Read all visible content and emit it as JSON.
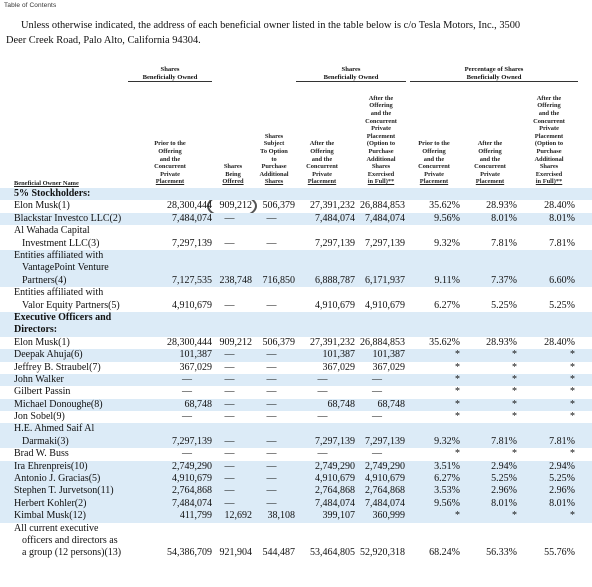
{
  "toc_label": "Table of Contents",
  "intro_text": {
    "line1": "Unless otherwise indicated, the address of each beneficial owner listed in the table below is c/o Tesla Motors, Inc., 3500",
    "line2": "Deer Creek Road, Palo Alto, California 94304."
  },
  "groups": {
    "shares_owned_1": [
      "Shares",
      "Beneficially Owned"
    ],
    "shares_owned_2": [
      "Shares",
      "Beneficially Owned"
    ],
    "percentage": [
      "Percentage of Shares",
      "Beneficially Owned"
    ]
  },
  "columns": [
    [
      "Prior to the",
      "Offering",
      "and the",
      "Concurrent",
      "Private",
      "Placement"
    ],
    [
      "Shares",
      "Being",
      "Offered"
    ],
    [
      "Shares",
      "Subject",
      "To Option",
      "to",
      "Purchase",
      "Additional",
      "Shares"
    ],
    [
      "After the",
      "Offering",
      "and the",
      "Concurrent",
      "Private",
      "Placement"
    ],
    [
      "After the",
      "Offering",
      "and the",
      "Concurrent",
      "Private",
      "Placement",
      "(Option to",
      "Purchase",
      "Additional",
      "Shares",
      "Exercised",
      "in Full)**"
    ],
    [
      "Prior to the",
      "Offering",
      "and the",
      "Concurrent",
      "Private",
      "Placement"
    ],
    [
      "After the",
      "Offering",
      "and the",
      "Concurrent",
      "Private",
      "Placement"
    ],
    [
      "After the",
      "Offering",
      "and the",
      "Concurrent",
      "Private",
      "Placement",
      "(Option to",
      "Purchase",
      "Additional",
      "Shares",
      "Exercised",
      "in Full)**"
    ]
  ],
  "owner_header": "Beneficial Owner Name",
  "rows": [
    {
      "name": [
        "5% Stockholders:"
      ],
      "section": true,
      "blue": true,
      "values": [
        "",
        "",
        "",
        "",
        "",
        "",
        "",
        ""
      ]
    },
    {
      "name": [
        "Elon Musk(1)"
      ],
      "values": [
        "28,300,444",
        "909,212",
        "506,379",
        "27,391,232",
        "26,884,853",
        "35.62%",
        "28.93%",
        "28.40%"
      ]
    },
    {
      "name": [
        "Blackstar Investco LLC(2)"
      ],
      "blue": true,
      "values": [
        "7,484,074",
        "—",
        "—",
        "7,484,074",
        "7,484,074",
        "9.56%",
        "8.01%",
        "8.01%"
      ]
    },
    {
      "name": [
        "Al Wahada Capital",
        "Investment LLC(3)"
      ],
      "values": [
        "7,297,139",
        "—",
        "—",
        "7,297,139",
        "7,297,139",
        "9.32%",
        "7.81%",
        "7.81%"
      ]
    },
    {
      "name": [
        "Entities affiliated with",
        "VantagePoint Venture",
        "Partners(4)"
      ],
      "blue": true,
      "values": [
        "7,127,535",
        "238,748",
        "716,850",
        "6,888,787",
        "6,171,937",
        "9.11%",
        "7.37%",
        "6.60%"
      ]
    },
    {
      "name": [
        "Entities affiliated with",
        "Valor Equity Partners(5)"
      ],
      "values": [
        "4,910,679",
        "—",
        "—",
        "4,910,679",
        "4,910,679",
        "6.27%",
        "5.25%",
        "5.25%"
      ]
    },
    {
      "name": [
        "Executive Officers and",
        "Directors:"
      ],
      "section": true,
      "blue": true,
      "values": [
        "",
        "",
        "",
        "",
        "",
        "",
        "",
        ""
      ]
    },
    {
      "name": [
        "Elon Musk(1)"
      ],
      "values": [
        "28,300,444",
        "909,212",
        "506,379",
        "27,391,232",
        "26,884,853",
        "35.62%",
        "28.93%",
        "28.40%"
      ]
    },
    {
      "name": [
        "Deepak Ahuja(6)"
      ],
      "blue": true,
      "values": [
        "101,387",
        "—",
        "—",
        "101,387",
        "101,387",
        "*",
        "*",
        "*"
      ]
    },
    {
      "name": [
        "Jeffrey B. Straubel(7)"
      ],
      "values": [
        "367,029",
        "—",
        "—",
        "367,029",
        "367,029",
        "*",
        "*",
        "*"
      ]
    },
    {
      "name": [
        "John Walker"
      ],
      "blue": true,
      "values": [
        "—",
        "—",
        "—",
        "—",
        "—",
        "*",
        "*",
        "*"
      ]
    },
    {
      "name": [
        "Gilbert Passin"
      ],
      "values": [
        "—",
        "—",
        "—",
        "—",
        "—",
        "*",
        "*",
        "*"
      ]
    },
    {
      "name": [
        "Michael Donoughe(8)"
      ],
      "blue": true,
      "values": [
        "68,748",
        "—",
        "—",
        "68,748",
        "68,748",
        "*",
        "*",
        "*"
      ]
    },
    {
      "name": [
        "Jon Sobel(9)"
      ],
      "values": [
        "—",
        "—",
        "—",
        "—",
        "—",
        "*",
        "*",
        "*"
      ]
    },
    {
      "name": [
        "H.E. Ahmed Saif Al",
        "Darmaki(3)"
      ],
      "blue": true,
      "values": [
        "7,297,139",
        "—",
        "—",
        "7,297,139",
        "7,297,139",
        "9.32%",
        "7.81%",
        "7.81%"
      ]
    },
    {
      "name": [
        "Brad W. Buss"
      ],
      "values": [
        "—",
        "—",
        "—",
        "—",
        "—",
        "*",
        "*",
        "*"
      ]
    },
    {
      "name": [
        "Ira Ehrenpreis(10)"
      ],
      "blue": true,
      "values": [
        "2,749,290",
        "—",
        "—",
        "2,749,290",
        "2,749,290",
        "3.51%",
        "2.94%",
        "2.94%"
      ]
    },
    {
      "name": [
        "Antonio J. Gracias(5)"
      ],
      "blue": true,
      "values": [
        "4,910,679",
        "—",
        "—",
        "4,910,679",
        "4,910,679",
        "6.27%",
        "5.25%",
        "5.25%"
      ]
    },
    {
      "name": [
        "Stephen T. Jurvetson(11)"
      ],
      "blue": true,
      "values": [
        "2,764,868",
        "—",
        "—",
        "2,764,868",
        "2,764,868",
        "3.53%",
        "2.96%",
        "2.96%"
      ]
    },
    {
      "name": [
        "Herbert Kohler(2)"
      ],
      "blue": true,
      "values": [
        "7,484,074",
        "—",
        "—",
        "7,484,074",
        "7,484,074",
        "9.56%",
        "8.01%",
        "8.01%"
      ]
    },
    {
      "name": [
        "Kimbal Musk(12)"
      ],
      "blue": true,
      "values": [
        "411,799",
        "12,692",
        "38,108",
        "399,107",
        "360,999",
        "*",
        "*",
        "*"
      ]
    },
    {
      "name": [
        "All current executive",
        "officers and directors as",
        "a group (12 persons)(13)"
      ],
      "values": [
        "54,386,709",
        "921,904",
        "544,487",
        "53,464,805",
        "52,920,318",
        "68.24%",
        "56.33%",
        "55.76%"
      ]
    }
  ]
}
